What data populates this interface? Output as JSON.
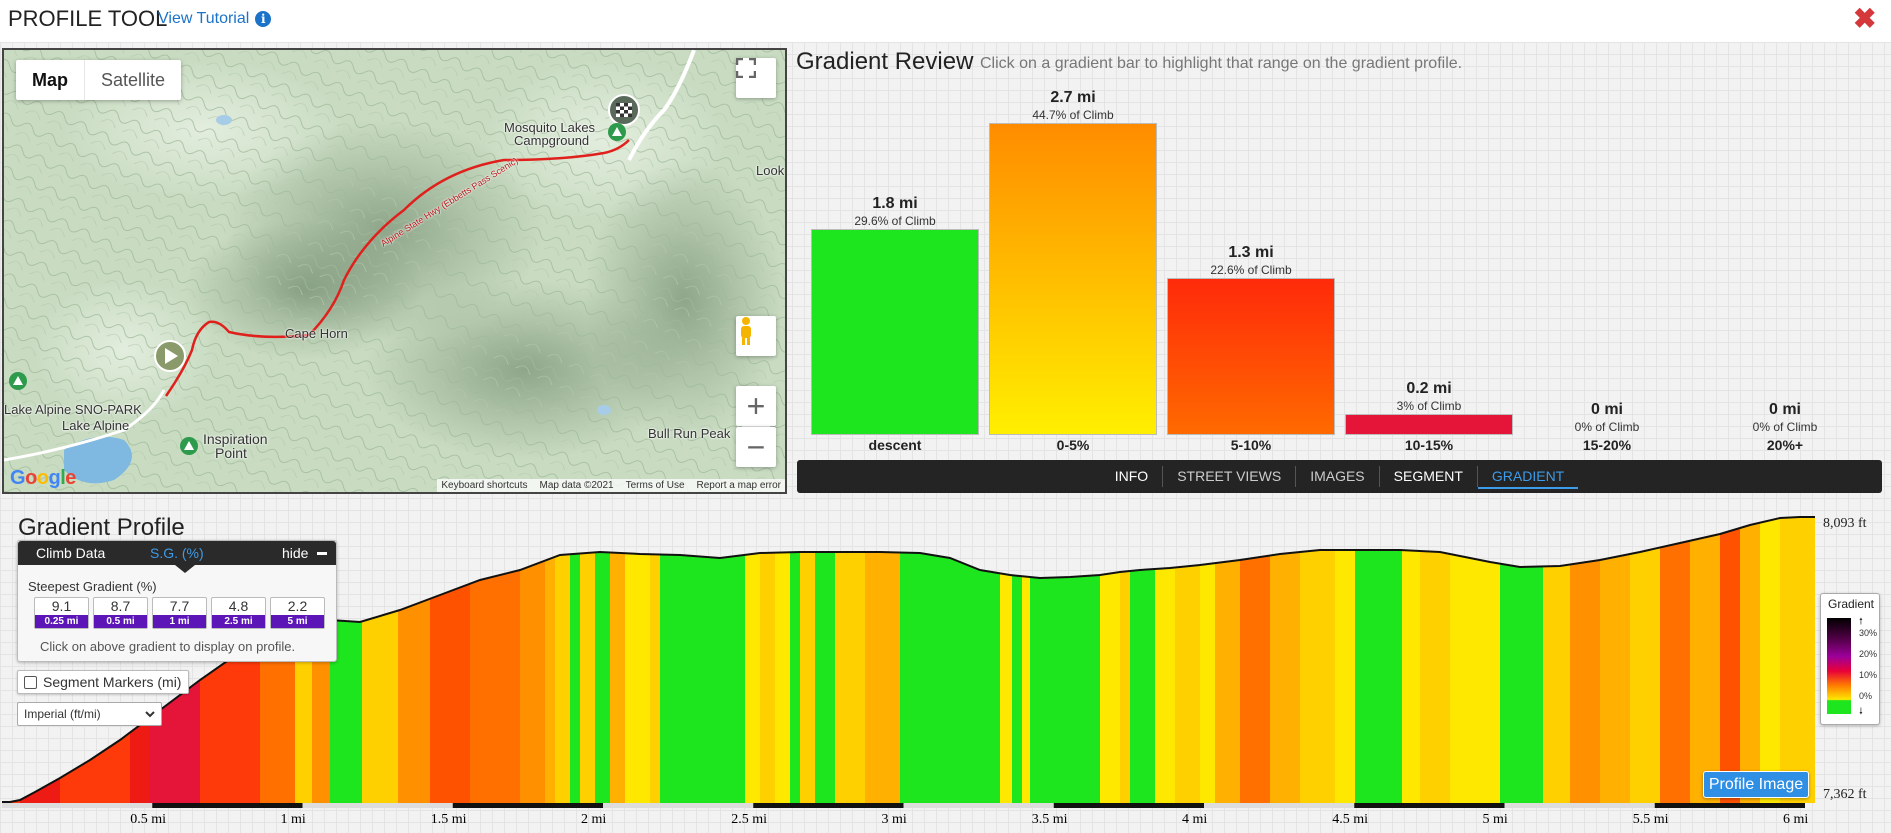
{
  "header": {
    "title": "PROFILE TOOL",
    "tutorial_link": "View Tutorial",
    "info_icon": "i",
    "close_icon": "✖"
  },
  "map": {
    "map_type_buttons": [
      "Map",
      "Satellite"
    ],
    "active_map_type": "Map",
    "labels": {
      "mosquito_lakes": "Mosquito Lakes",
      "campground": "Campground",
      "look": "Look",
      "cape_horn": "Cape Horn",
      "lake_alpine_sno_park": "Lake Alpine SNO-PARK",
      "lake_alpine": "Lake Alpine",
      "inspiration": "Inspiration",
      "point": "Point",
      "bull_run_peak": "Bull Run Peak",
      "route_label": "Alpine State Hwy (Ebbetts Pass Scenic)"
    },
    "zoom_in": "+",
    "zoom_out": "−",
    "footer": {
      "shortcuts": "Keyboard shortcuts",
      "map_data": "Map data ©2021",
      "terms": "Terms of Use",
      "report": "Report a map error"
    },
    "logo": "Google"
  },
  "gradient_review": {
    "title": "Gradient Review",
    "subtitle": "Click on a gradient bar to highlight that range on the gradient profile.",
    "bars": [
      {
        "distance": "1.8 mi",
        "percent": "29.6% of Climb",
        "category": "descent"
      },
      {
        "distance": "2.7 mi",
        "percent": "44.7% of Climb",
        "category": "0-5%"
      },
      {
        "distance": "1.3 mi",
        "percent": "22.6% of Climb",
        "category": "5-10%"
      },
      {
        "distance": "0.2 mi",
        "percent": "3% of Climb",
        "category": "10-15%"
      },
      {
        "distance": "0 mi",
        "percent": "0% of Climb",
        "category": "15-20%"
      },
      {
        "distance": "0 mi",
        "percent": "0% of Climb",
        "category": "20%+"
      }
    ]
  },
  "tabs": {
    "info": "INFO",
    "street_views": "STREET VIEWS",
    "images": "IMAGES",
    "segment": "SEGMENT",
    "gradient": "GRADIENT",
    "active": "GRADIENT"
  },
  "profile": {
    "title": "Gradient Profile",
    "climb_panel": {
      "climb_data": "Climb Data",
      "sg_tab": "S.G. (%)",
      "hide": "hide",
      "steepest_label": "Steepest Gradient (%)",
      "steepest": [
        {
          "value": "9.1",
          "distance": "0.25 mi"
        },
        {
          "value": "8.7",
          "distance": "0.5 mi"
        },
        {
          "value": "7.7",
          "distance": "1 mi"
        },
        {
          "value": "4.8",
          "distance": "2.5 mi"
        },
        {
          "value": "2.2",
          "distance": "5 mi"
        }
      ],
      "hint": "Click on above gradient to display on profile."
    },
    "segment_markers": "Segment Markers (mi)",
    "units_select": "Imperial (ft/mi)",
    "elevation_max": "8,093 ft",
    "elevation_min": "7,362 ft",
    "x_ticks": [
      "0.5 mi",
      "1 mi",
      "1.5 mi",
      "2 mi",
      "2.5 mi",
      "3 mi",
      "3.5 mi",
      "4 mi",
      "4.5 mi",
      "5 mi",
      "5.5 mi",
      "6 mi"
    ],
    "legend": {
      "title": "Gradient",
      "ticks": [
        "30%",
        "20%",
        "10%",
        "0%"
      ],
      "up_arrow": "🠕",
      "down_arrow": "🠗"
    },
    "profile_image_button": "Profile Image"
  },
  "colors": {
    "descent": "#1ee61e",
    "grade_0_5_top": "#ff8c00",
    "grade_0_5_bottom": "#ffef00",
    "grade_5_10_top": "#ff2a0a",
    "grade_5_10_bottom": "#ff6a00",
    "grade_10_15": "#e5153a",
    "accent": "#3d9be9",
    "close": "#d4383a"
  }
}
